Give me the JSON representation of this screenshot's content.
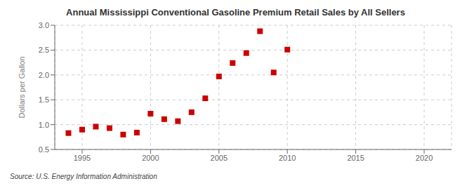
{
  "chart_data": {
    "type": "scatter",
    "title": "Annual Mississippi Conventional Gasoline Premium Retail Sales by All Sellers",
    "ylabel": "Dollars per Gallon",
    "annotations": [
      "Source: U.S. Energy Information Administration"
    ],
    "x": [
      1994,
      1995,
      1996,
      1997,
      1998,
      1999,
      2000,
      2001,
      2002,
      2003,
      2004,
      2005,
      2006,
      2007,
      2008,
      2009,
      2010
    ],
    "values": [
      0.83,
      0.9,
      0.96,
      0.93,
      0.8,
      0.84,
      1.22,
      1.11,
      1.07,
      1.25,
      1.53,
      1.97,
      2.24,
      2.44,
      2.88,
      2.05,
      2.51
    ],
    "color": "#cc0000",
    "marker": "square",
    "xlim": [
      1993,
      2022
    ],
    "ylim": [
      0.5,
      3.0
    ],
    "xticks": [
      1995,
      2000,
      2005,
      2010,
      2015,
      2020
    ],
    "yticks": [
      0.5,
      {
        "value": 1.0,
        "label": "1.0"
      },
      1.5,
      {
        "value": 2.0,
        "label": "2.0"
      },
      2.5,
      {
        "value": 3.0,
        "label": "3.0"
      }
    ],
    "grid": true
  }
}
